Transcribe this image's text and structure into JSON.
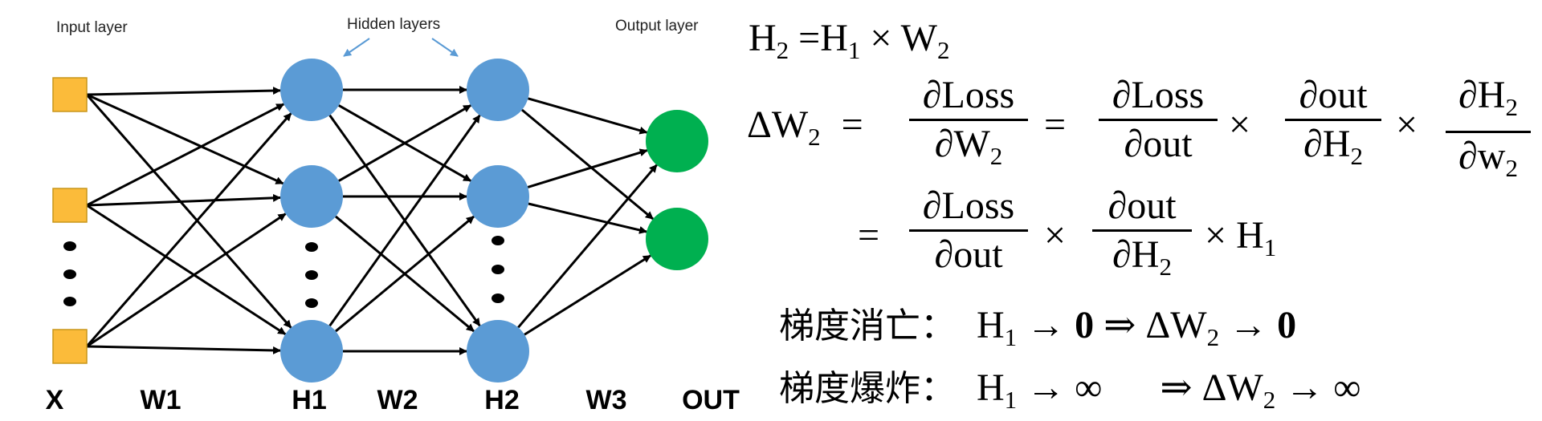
{
  "diagram": {
    "input_layer_label": "Input layer",
    "hidden_layers_label": "Hidden layers",
    "output_layer_label": "Output layer",
    "bottom_labels": [
      "X",
      "W1",
      "H1",
      "W2",
      "H2",
      "W3",
      "OUT"
    ],
    "colors": {
      "input_node": "#fbbb3a",
      "hidden_node": "#5b9bd5",
      "output_node": "#00b050",
      "edge": "#000000"
    }
  },
  "equations": {
    "line1": {
      "lhs": "H",
      "lhs_sub": "2",
      "rhs1": "H",
      "rhs1_sub": "1",
      "times": "×",
      "rhs2": "W",
      "rhs2_sub": "2",
      "eq": "="
    },
    "line2": {
      "lhs": "ΔW",
      "lhs_sub": "2",
      "eq": "=",
      "f1_num": "∂Loss",
      "f1_den": "∂W",
      "f1_den_sub": "2",
      "f2_num": "∂Loss",
      "f2_den": "∂out",
      "f3_num": "∂out",
      "f3_den": "∂H",
      "f3_den_sub": "2",
      "f4_num": "∂H",
      "f4_num_sub": "2",
      "f4_den": "∂w",
      "f4_den_sub": "2",
      "times": "×"
    },
    "line3": {
      "eq": "=",
      "f1_num": "∂Loss",
      "f1_den": "∂out",
      "f2_num": "∂out",
      "f2_den": "∂H",
      "f2_den_sub": "2",
      "tail": "× H",
      "tail_sub": "1",
      "times": "×"
    },
    "vanishing": {
      "label": "梯度消亡：",
      "a": "H",
      "a_sub": "1",
      "b": "→",
      "c": "0",
      "d": "⇒",
      "e": "ΔW",
      "e_sub": "2",
      "f": "→",
      "g": "0"
    },
    "exploding": {
      "label": "梯度爆炸：",
      "a": "H",
      "a_sub": "1",
      "b": "→",
      "c": "∞",
      "d": "⇒",
      "e": "ΔW",
      "e_sub": "2",
      "f": "→",
      "g": "∞"
    }
  }
}
